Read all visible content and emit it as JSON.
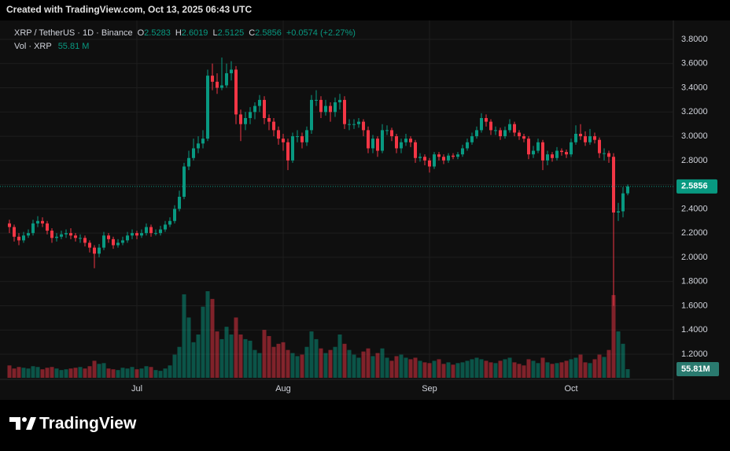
{
  "header": {
    "credit": "Created with TradingView.com, Oct 13, 2025 06:43 UTC",
    "symbol": "XRP / TetherUS · 1D · Binance",
    "o_label": "O",
    "o": "2.5283",
    "h_label": "H",
    "h": "2.6019",
    "l_label": "L",
    "l": "2.5125",
    "c_label": "C",
    "c": "2.5856",
    "change": "+0.0574 (+2.27%)",
    "vol_label": "Vol · XRP",
    "vol": "55.81 M",
    "brand": "TradingView"
  },
  "chart_data": {
    "type": "candlestick",
    "up_color": "#089981",
    "down_color": "#f23645",
    "grid": true,
    "volume_label": "55.81M",
    "ylim": [
      1.005,
      3.93
    ],
    "yticks": [
      {
        "value": 1.2,
        "label": "1.2000"
      },
      {
        "value": 1.4,
        "label": "1.4000"
      },
      {
        "value": 1.6,
        "label": "1.6000"
      },
      {
        "value": 1.8,
        "label": "1.8000"
      },
      {
        "value": 2.0,
        "label": "2.0000"
      },
      {
        "value": 2.2,
        "label": "2.2000"
      },
      {
        "value": 2.4,
        "label": "2.4000"
      },
      {
        "value": 2.6,
        "label": "2.6000"
      },
      {
        "value": 2.8,
        "label": "2.8000"
      },
      {
        "value": 3.0,
        "label": "3.0000"
      },
      {
        "value": 3.2,
        "label": "3.2000"
      },
      {
        "value": 3.4,
        "label": "3.4000"
      },
      {
        "value": 3.6,
        "label": "3.6000"
      },
      {
        "value": 3.8,
        "label": "3.8000"
      }
    ],
    "categories": [
      null,
      null,
      null,
      null,
      null,
      null,
      null,
      null,
      null,
      null,
      null,
      null,
      null,
      null,
      null,
      null,
      null,
      null,
      null,
      null,
      null,
      null,
      null,
      null,
      null,
      null,
      null,
      "Jul",
      null,
      null,
      null,
      null,
      null,
      null,
      null,
      null,
      null,
      null,
      null,
      null,
      null,
      null,
      null,
      null,
      null,
      null,
      null,
      null,
      null,
      null,
      null,
      null,
      null,
      null,
      null,
      null,
      null,
      null,
      "Aug",
      null,
      null,
      null,
      null,
      null,
      null,
      null,
      null,
      null,
      null,
      null,
      null,
      null,
      null,
      null,
      null,
      null,
      null,
      null,
      null,
      null,
      null,
      null,
      null,
      null,
      null,
      null,
      null,
      null,
      null,
      "Sep",
      null,
      null,
      null,
      null,
      null,
      null,
      null,
      null,
      null,
      null,
      null,
      null,
      null,
      null,
      null,
      null,
      null,
      null,
      null,
      null,
      null,
      null,
      null,
      null,
      null,
      null,
      null,
      null,
      null,
      "Oct",
      null,
      null,
      null,
      null,
      null,
      null,
      null,
      null,
      null,
      null,
      null,
      null
    ],
    "open": [
      2.28,
      2.25,
      2.17,
      2.14,
      2.18,
      2.2,
      2.28,
      2.3,
      2.28,
      2.22,
      2.16,
      2.17,
      2.19,
      2.2,
      2.18,
      2.16,
      2.16,
      2.12,
      2.08,
      2.03,
      2.08,
      2.18,
      2.15,
      2.1,
      2.12,
      2.14,
      2.18,
      2.2,
      2.18,
      2.2,
      2.25,
      2.2,
      2.2,
      2.23,
      2.27,
      2.3,
      2.4,
      2.5,
      2.75,
      2.82,
      2.9,
      2.94,
      2.98,
      3.5,
      3.45,
      3.4,
      3.42,
      3.52,
      3.55,
      3.18,
      3.1,
      3.15,
      3.2,
      3.25,
      3.3,
      3.15,
      3.12,
      3.05,
      2.98,
      2.95,
      2.8,
      3.0,
      3.0,
      2.95,
      3.05,
      3.3,
      3.3,
      3.2,
      3.25,
      3.2,
      3.28,
      3.3,
      3.1,
      3.1,
      3.1,
      3.12,
      3.05,
      2.9,
      2.98,
      2.88,
      3.05,
      3.05,
      3.0,
      2.9,
      2.95,
      2.98,
      2.95,
      2.82,
      2.83,
      2.8,
      2.75,
      2.85,
      2.83,
      2.8,
      2.84,
      2.83,
      2.85,
      2.9,
      2.95,
      3.0,
      3.05,
      3.15,
      3.12,
      3.05,
      3.05,
      3.0,
      3.05,
      3.1,
      3.03,
      3.0,
      2.98,
      2.85,
      2.88,
      2.95,
      2.8,
      2.85,
      2.82,
      2.88,
      2.87,
      2.85,
      2.95,
      3.02,
      3.0,
      2.95,
      3.0,
      2.97,
      2.86,
      2.86,
      2.83,
      2.37,
      2.38,
      2.5283
    ],
    "high": [
      2.31,
      2.27,
      2.2,
      2.21,
      2.23,
      2.31,
      2.34,
      2.33,
      2.3,
      2.24,
      2.2,
      2.22,
      2.23,
      2.24,
      2.2,
      2.19,
      2.18,
      2.14,
      2.1,
      2.11,
      2.21,
      2.2,
      2.17,
      2.15,
      2.17,
      2.21,
      2.23,
      2.22,
      2.23,
      2.28,
      2.27,
      2.23,
      2.26,
      2.3,
      2.33,
      2.43,
      2.55,
      2.78,
      2.88,
      2.98,
      3.0,
      3.05,
      3.55,
      3.6,
      3.52,
      3.65,
      3.6,
      3.62,
      3.58,
      3.22,
      3.2,
      3.24,
      3.28,
      3.34,
      3.33,
      3.18,
      3.15,
      3.08,
      3.02,
      2.98,
      3.03,
      3.05,
      3.03,
      3.08,
      3.34,
      3.38,
      3.33,
      3.3,
      3.28,
      3.32,
      3.35,
      3.33,
      3.14,
      3.14,
      3.15,
      3.14,
      3.08,
      3.01,
      3.0,
      3.1,
      3.09,
      3.07,
      3.02,
      2.98,
      3.02,
      3.0,
      2.97,
      2.86,
      2.85,
      2.82,
      2.87,
      2.87,
      2.85,
      2.86,
      2.86,
      2.87,
      2.93,
      2.98,
      3.03,
      3.08,
      3.19,
      3.18,
      3.14,
      3.08,
      3.07,
      3.08,
      3.14,
      3.12,
      3.05,
      3.02,
      3.0,
      2.92,
      2.98,
      2.97,
      2.88,
      2.87,
      2.91,
      2.9,
      2.89,
      2.98,
      3.09,
      3.1,
      3.04,
      3.06,
      3.03,
      2.99,
      2.9,
      2.88,
      2.86,
      2.45,
      2.58,
      2.6019
    ],
    "low": [
      2.2,
      2.13,
      2.1,
      2.12,
      2.16,
      2.18,
      2.25,
      2.25,
      2.19,
      2.12,
      2.13,
      2.15,
      2.16,
      2.15,
      2.13,
      2.12,
      2.09,
      2.04,
      1.91,
      2.0,
      2.06,
      2.12,
      2.07,
      2.08,
      2.1,
      2.12,
      2.15,
      2.15,
      2.16,
      2.18,
      2.17,
      2.18,
      2.18,
      2.21,
      2.25,
      2.28,
      2.38,
      2.48,
      2.72,
      2.8,
      2.86,
      2.9,
      2.96,
      3.38,
      3.35,
      3.38,
      3.4,
      3.46,
      3.1,
      2.96,
      3.05,
      3.1,
      3.14,
      3.2,
      3.1,
      3.05,
      3.0,
      2.93,
      2.88,
      2.72,
      2.78,
      2.95,
      2.9,
      2.92,
      3.02,
      3.25,
      3.15,
      3.17,
      3.12,
      3.16,
      3.22,
      3.06,
      3.05,
      3.06,
      3.07,
      3.0,
      2.86,
      2.86,
      2.83,
      2.86,
      3.01,
      2.96,
      2.86,
      2.86,
      2.92,
      2.91,
      2.78,
      2.79,
      2.76,
      2.7,
      2.73,
      2.8,
      2.77,
      2.78,
      2.81,
      2.81,
      2.83,
      2.88,
      2.93,
      2.98,
      3.03,
      3.08,
      3.01,
      3.01,
      2.97,
      2.98,
      3.03,
      3.0,
      2.97,
      2.95,
      2.81,
      2.82,
      2.86,
      2.72,
      2.76,
      2.79,
      2.8,
      2.84,
      2.82,
      2.83,
      2.93,
      2.97,
      2.92,
      2.93,
      2.94,
      2.82,
      2.8,
      2.78,
      1.6,
      2.3,
      2.33,
      2.5125
    ],
    "close": [
      2.25,
      2.17,
      2.14,
      2.18,
      2.2,
      2.28,
      2.3,
      2.28,
      2.22,
      2.16,
      2.17,
      2.19,
      2.2,
      2.18,
      2.16,
      2.16,
      2.12,
      2.08,
      2.03,
      2.08,
      2.18,
      2.15,
      2.1,
      2.12,
      2.14,
      2.18,
      2.2,
      2.18,
      2.2,
      2.25,
      2.2,
      2.2,
      2.23,
      2.27,
      2.3,
      2.4,
      2.5,
      2.75,
      2.82,
      2.9,
      2.94,
      2.98,
      3.5,
      3.45,
      3.4,
      3.42,
      3.52,
      3.55,
      3.18,
      3.1,
      3.15,
      3.2,
      3.25,
      3.3,
      3.15,
      3.12,
      3.05,
      2.98,
      2.95,
      2.8,
      3.0,
      3.0,
      2.95,
      3.05,
      3.3,
      3.3,
      3.2,
      3.25,
      3.2,
      3.28,
      3.3,
      3.1,
      3.1,
      3.1,
      3.12,
      3.05,
      2.9,
      2.98,
      2.88,
      3.05,
      3.05,
      3.0,
      2.9,
      2.95,
      2.98,
      2.95,
      2.82,
      2.83,
      2.8,
      2.75,
      2.85,
      2.83,
      2.8,
      2.84,
      2.83,
      2.85,
      2.9,
      2.95,
      3.0,
      3.05,
      3.15,
      3.12,
      3.05,
      3.05,
      3.0,
      3.05,
      3.1,
      3.03,
      3.0,
      2.98,
      2.85,
      2.88,
      2.95,
      2.8,
      2.85,
      2.82,
      2.88,
      2.87,
      2.85,
      2.95,
      3.02,
      3.0,
      2.95,
      3.0,
      2.97,
      2.86,
      2.86,
      2.83,
      2.37,
      2.38,
      2.5283,
      2.5856
    ],
    "volume": [
      80,
      60,
      70,
      65,
      60,
      75,
      70,
      55,
      65,
      70,
      60,
      50,
      55,
      60,
      65,
      70,
      60,
      75,
      110,
      90,
      95,
      60,
      55,
      50,
      65,
      60,
      70,
      55,
      60,
      75,
      70,
      50,
      45,
      60,
      80,
      150,
      200,
      540,
      390,
      230,
      280,
      460,
      560,
      510,
      300,
      250,
      330,
      280,
      390,
      280,
      250,
      240,
      180,
      160,
      310,
      270,
      200,
      220,
      230,
      180,
      160,
      140,
      150,
      200,
      300,
      250,
      190,
      160,
      180,
      200,
      280,
      220,
      180,
      150,
      130,
      170,
      190,
      140,
      160,
      190,
      130,
      110,
      140,
      150,
      130,
      120,
      130,
      110,
      100,
      95,
      110,
      120,
      90,
      100,
      85,
      95,
      100,
      110,
      120,
      130,
      120,
      110,
      100,
      95,
      110,
      120,
      130,
      100,
      90,
      80,
      120,
      110,
      95,
      130,
      100,
      90,
      95,
      100,
      110,
      120,
      130,
      150,
      100,
      95,
      120,
      150,
      135,
      180,
      535,
      300,
      220,
      55.81
    ]
  }
}
